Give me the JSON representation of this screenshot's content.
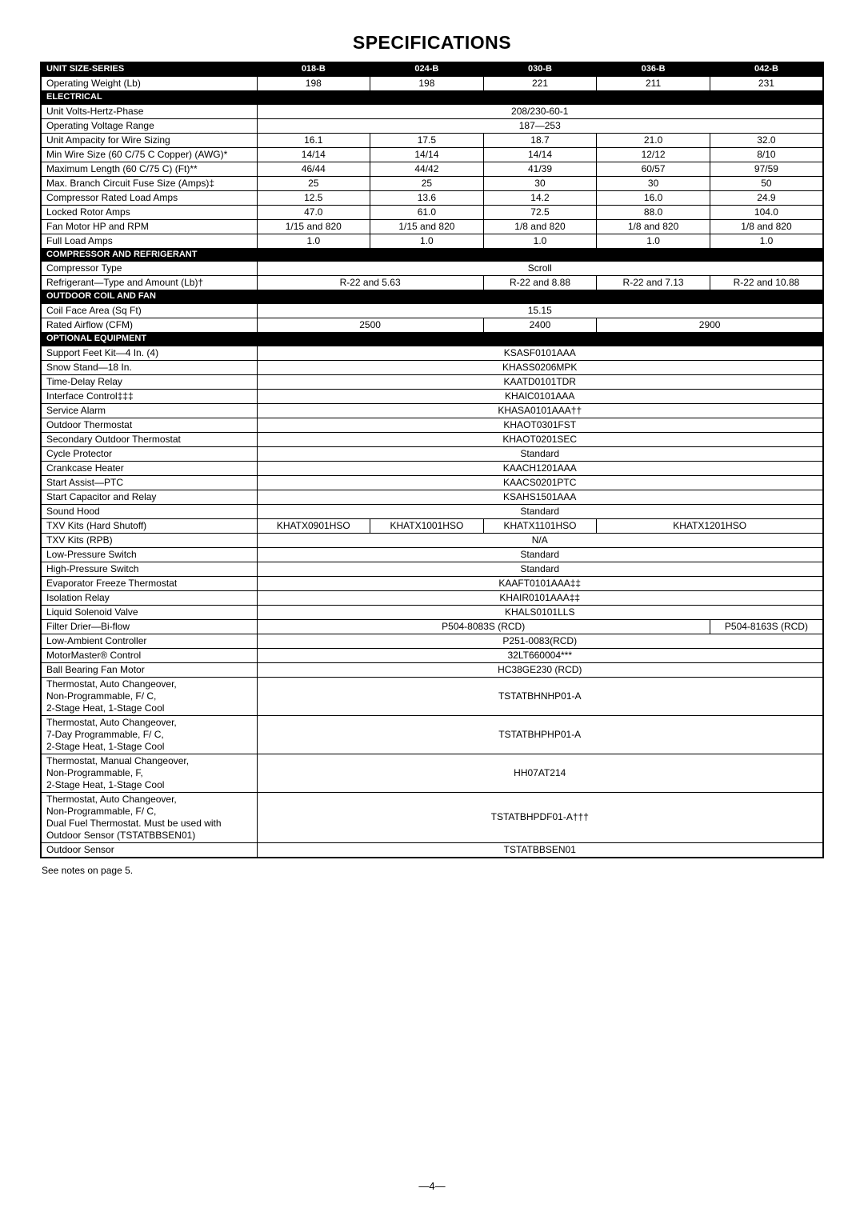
{
  "title": "SPECIFICATIONS",
  "columns": [
    "018-B",
    "024-B",
    "030-B",
    "036-B",
    "042-B"
  ],
  "header_label": "UNIT SIZE-SERIES",
  "footnote": "See notes on page 5.",
  "page_number": "—4—",
  "sections": {
    "electrical": "ELECTRICAL",
    "compressor": "COMPRESSOR AND REFRIGERANT",
    "coil": "OUTDOOR COIL AND FAN",
    "optional": "OPTIONAL EQUIPMENT"
  },
  "rows": {
    "op_weight": {
      "label": "Operating Weight (Lb)",
      "span": [
        1,
        1,
        1,
        1,
        1
      ],
      "vals": [
        "198",
        "198",
        "221",
        "211",
        "231"
      ]
    },
    "uvhp": {
      "label": "Unit Volts-Hertz-Phase",
      "span": [
        5
      ],
      "vals": [
        "208/230-60-1"
      ]
    },
    "ovr": {
      "label": "Operating Voltage Range",
      "span": [
        5
      ],
      "vals": [
        "187—253"
      ]
    },
    "amp": {
      "label": "Unit Ampacity for Wire Sizing",
      "span": [
        1,
        1,
        1,
        1,
        1
      ],
      "vals": [
        "16.1",
        "17.5",
        "18.7",
        "21.0",
        "32.0"
      ]
    },
    "wire": {
      "label": "Min Wire Size (60 C/75 C Copper) (AWG)*",
      "span": [
        1,
        1,
        1,
        1,
        1
      ],
      "vals": [
        "14/14",
        "14/14",
        "14/14",
        "12/12",
        "8/10"
      ]
    },
    "maxlen": {
      "label": "Maximum Length (60 C/75 C) (Ft)**",
      "span": [
        1,
        1,
        1,
        1,
        1
      ],
      "vals": [
        "46/44",
        "44/42",
        "41/39",
        "60/57",
        "97/59"
      ]
    },
    "fuse": {
      "label": "Max. Branch Circuit Fuse Size (Amps)‡",
      "span": [
        1,
        1,
        1,
        1,
        1
      ],
      "vals": [
        "25",
        "25",
        "30",
        "30",
        "50"
      ]
    },
    "crla": {
      "label": "Compressor Rated Load Amps",
      "span": [
        1,
        1,
        1,
        1,
        1
      ],
      "vals": [
        "12.5",
        "13.6",
        "14.2",
        "16.0",
        "24.9"
      ]
    },
    "lra": {
      "label": "Locked Rotor Amps",
      "span": [
        1,
        1,
        1,
        1,
        1
      ],
      "vals": [
        "47.0",
        "61.0",
        "72.5",
        "88.0",
        "104.0"
      ]
    },
    "fanhp": {
      "label": "Fan Motor HP and RPM",
      "span": [
        1,
        1,
        1,
        1,
        1
      ],
      "vals": [
        "1/15 and 820",
        "1/15 and 820",
        "1/8 and 820",
        "1/8 and 820",
        "1/8 and 820"
      ]
    },
    "fla": {
      "label": "Full Load Amps",
      "span": [
        1,
        1,
        1,
        1,
        1
      ],
      "vals": [
        "1.0",
        "1.0",
        "1.0",
        "1.0",
        "1.0"
      ]
    },
    "ctype": {
      "label": "Compressor Type",
      "span": [
        5
      ],
      "vals": [
        "Scroll"
      ]
    },
    "refrig": {
      "label": "Refrigerant—Type and Amount (Lb)†",
      "span": [
        2,
        1,
        1,
        1
      ],
      "vals": [
        "R-22 and 5.63",
        "R-22 and 8.88",
        "R-22 and 7.13",
        "R-22 and 10.88"
      ]
    },
    "coilface": {
      "label": "Coil Face Area (Sq Ft)",
      "span": [
        5
      ],
      "vals": [
        "15.15"
      ]
    },
    "airflow": {
      "label": "Rated Airflow (CFM)",
      "span": [
        2,
        1,
        2
      ],
      "vals": [
        "2500",
        "2400",
        "2900"
      ]
    },
    "support": {
      "label": "Support Feet Kit—4 In. (4)",
      "span": [
        5
      ],
      "vals": [
        "KSASF0101AAA"
      ]
    },
    "snow": {
      "label": "Snow Stand—18 In.",
      "span": [
        5
      ],
      "vals": [
        "KHASS0206MPK"
      ]
    },
    "timed": {
      "label": "Time-Delay Relay",
      "span": [
        5
      ],
      "vals": [
        "KAATD0101TDR"
      ]
    },
    "iface": {
      "label": "Interface Control‡‡‡",
      "span": [
        5
      ],
      "vals": [
        "KHAIC0101AAA"
      ]
    },
    "svc": {
      "label": "Service Alarm",
      "span": [
        5
      ],
      "vals": [
        "KHASA0101AAA††"
      ]
    },
    "otherm": {
      "label": "Outdoor Thermostat",
      "span": [
        5
      ],
      "vals": [
        "KHAOT0301FST"
      ]
    },
    "sotherm": {
      "label": "Secondary Outdoor Thermostat",
      "span": [
        5
      ],
      "vals": [
        "KHAOT0201SEC"
      ]
    },
    "cycle": {
      "label": "Cycle Protector",
      "span": [
        5
      ],
      "vals": [
        "Standard"
      ]
    },
    "crank": {
      "label": "Crankcase Heater",
      "span": [
        5
      ],
      "vals": [
        "KAACH1201AAA"
      ]
    },
    "startptc": {
      "label": "Start Assist—PTC",
      "span": [
        5
      ],
      "vals": [
        "KAACS0201PTC"
      ]
    },
    "startcap": {
      "label": "Start Capacitor and Relay",
      "span": [
        5
      ],
      "vals": [
        "KSAHS1501AAA"
      ]
    },
    "sound": {
      "label": "Sound Hood",
      "span": [
        5
      ],
      "vals": [
        "Standard"
      ]
    },
    "txv": {
      "label": "TXV Kits (Hard Shutoff)",
      "span": [
        1,
        1,
        1,
        2
      ],
      "vals": [
        "KHATX0901HSO",
        "KHATX1001HSO",
        "KHATX1101HSO",
        "KHATX1201HSO"
      ]
    },
    "txvrpb": {
      "label": "TXV Kits (RPB)",
      "span": [
        5
      ],
      "vals": [
        "N/A"
      ]
    },
    "lps": {
      "label": "Low-Pressure Switch",
      "span": [
        5
      ],
      "vals": [
        "Standard"
      ]
    },
    "hps": {
      "label": "High-Pressure Switch",
      "span": [
        5
      ],
      "vals": [
        "Standard"
      ]
    },
    "evap": {
      "label": "Evaporator Freeze Thermostat",
      "span": [
        5
      ],
      "vals": [
        "KAAFT0101AAA‡‡"
      ]
    },
    "iso": {
      "label": "Isolation Relay",
      "span": [
        5
      ],
      "vals": [
        "KHAIR0101AAA‡‡"
      ]
    },
    "liq": {
      "label": "Liquid Solenoid Valve",
      "span": [
        5
      ],
      "vals": [
        "KHALS0101LLS"
      ]
    },
    "filter": {
      "label": "Filter Drier—Bi-flow",
      "span": [
        4,
        1
      ],
      "vals": [
        "P504-8083S (RCD)",
        "P504-8163S (RCD)"
      ]
    },
    "lowamb": {
      "label": "Low-Ambient Controller",
      "span": [
        5
      ],
      "vals": [
        "P251-0083(RCD)"
      ]
    },
    "motor": {
      "label": "MotorMaster® Control",
      "span": [
        5
      ],
      "vals": [
        "32LT660004***"
      ]
    },
    "fanmotor": {
      "label": "Ball Bearing Fan Motor",
      "span": [
        5
      ],
      "vals": [
        "HC38GE230 (RCD)"
      ]
    },
    "t1": {
      "label": "Thermostat, Auto Changeover,\nNon-Programmable,  F/ C,\n2-Stage Heat, 1-Stage Cool",
      "span": [
        5
      ],
      "vals": [
        "TSTATBHNHP01-A"
      ]
    },
    "t2": {
      "label": "Thermostat, Auto Changeover,\n7-Day Programmable,  F/ C,\n2-Stage Heat, 1-Stage Cool",
      "span": [
        5
      ],
      "vals": [
        "TSTATBHPHP01-A"
      ]
    },
    "t3": {
      "label": "Thermostat, Manual Changeover,\nNon-Programmable, F,\n2-Stage Heat, 1-Stage Cool",
      "span": [
        5
      ],
      "vals": [
        "HH07AT214"
      ]
    },
    "t4": {
      "label": "Thermostat, Auto Changeover,\nNon-Programmable,  F/ C,\nDual Fuel Thermostat. Must be used with\nOutdoor Sensor (TSTATBBSEN01)",
      "span": [
        5
      ],
      "vals": [
        "TSTATBHPDF01-A†††"
      ]
    },
    "osens": {
      "label": "Outdoor Sensor",
      "span": [
        5
      ],
      "vals": [
        "TSTATBBSEN01"
      ]
    }
  }
}
